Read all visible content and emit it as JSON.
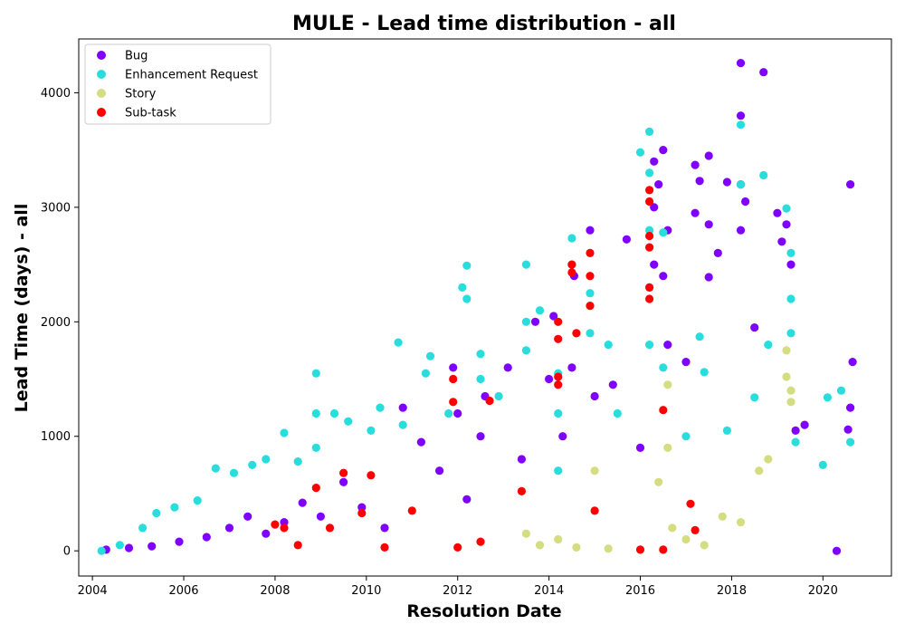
{
  "chart_data": {
    "type": "scatter",
    "title": "MULE - Lead time distribution - all",
    "xlabel": "Resolution Date",
    "ylabel": "Lead Time (days) - all",
    "x_ticks": [
      "2004",
      "2006",
      "2008",
      "2010",
      "2012",
      "2014",
      "2016",
      "2018",
      "2020"
    ],
    "y_ticks": [
      "0",
      "1000",
      "2000",
      "3000",
      "4000"
    ],
    "xlim": [
      2003.7,
      2021.5
    ],
    "ylim": [
      -220,
      4470
    ],
    "grid": false,
    "legend_position": "top-left",
    "colors": {
      "bug": "#8000ff",
      "enhancement": "#2adddd",
      "story": "#d4dd80",
      "subtask": "#ff0000"
    },
    "series": [
      {
        "name": "Bug",
        "color": "#8000ff",
        "points": [
          [
            2004.3,
            10
          ],
          [
            2004.8,
            25
          ],
          [
            2005.3,
            40
          ],
          [
            2005.9,
            80
          ],
          [
            2006.5,
            120
          ],
          [
            2007.0,
            200
          ],
          [
            2007.4,
            300
          ],
          [
            2007.8,
            150
          ],
          [
            2008.2,
            250
          ],
          [
            2008.6,
            420
          ],
          [
            2009.0,
            300
          ],
          [
            2009.5,
            600
          ],
          [
            2009.9,
            380
          ],
          [
            2010.4,
            200
          ],
          [
            2010.8,
            1250
          ],
          [
            2011.2,
            950
          ],
          [
            2011.6,
            700
          ],
          [
            2011.9,
            1600
          ],
          [
            2012.0,
            1200
          ],
          [
            2012.2,
            450
          ],
          [
            2012.5,
            1000
          ],
          [
            2012.6,
            1350
          ],
          [
            2013.1,
            1600
          ],
          [
            2013.4,
            800
          ],
          [
            2013.7,
            2000
          ],
          [
            2014.0,
            1500
          ],
          [
            2014.1,
            2050
          ],
          [
            2014.3,
            1000
          ],
          [
            2014.5,
            1600
          ],
          [
            2014.55,
            2400
          ],
          [
            2014.9,
            2800
          ],
          [
            2015.0,
            1350
          ],
          [
            2015.4,
            1450
          ],
          [
            2015.7,
            2720
          ],
          [
            2016.0,
            900
          ],
          [
            2016.3,
            3400
          ],
          [
            2016.3,
            3000
          ],
          [
            2016.3,
            2500
          ],
          [
            2016.4,
            3200
          ],
          [
            2016.5,
            3500
          ],
          [
            2016.5,
            2400
          ],
          [
            2016.6,
            1800
          ],
          [
            2016.6,
            2800
          ],
          [
            2017.0,
            1650
          ],
          [
            2017.2,
            3370
          ],
          [
            2017.2,
            2950
          ],
          [
            2017.3,
            3230
          ],
          [
            2017.5,
            3450
          ],
          [
            2017.5,
            2850
          ],
          [
            2017.5,
            2390
          ],
          [
            2017.7,
            2600
          ],
          [
            2017.9,
            3220
          ],
          [
            2018.2,
            4260
          ],
          [
            2018.2,
            3800
          ],
          [
            2018.2,
            3200
          ],
          [
            2018.2,
            2800
          ],
          [
            2018.3,
            3050
          ],
          [
            2018.5,
            1950
          ],
          [
            2018.7,
            4180
          ],
          [
            2019.0,
            2950
          ],
          [
            2019.1,
            2700
          ],
          [
            2019.2,
            2850
          ],
          [
            2019.3,
            2500
          ],
          [
            2019.4,
            1050
          ],
          [
            2019.6,
            1100
          ],
          [
            2020.3,
            0
          ],
          [
            2020.6,
            3200
          ],
          [
            2020.65,
            1650
          ],
          [
            2020.6,
            1250
          ],
          [
            2020.55,
            1060
          ]
        ]
      },
      {
        "name": "Enhancement Request",
        "color": "#2adddd",
        "points": [
          [
            2004.2,
            0
          ],
          [
            2004.6,
            50
          ],
          [
            2005.1,
            200
          ],
          [
            2005.4,
            330
          ],
          [
            2005.8,
            380
          ],
          [
            2006.3,
            440
          ],
          [
            2006.7,
            720
          ],
          [
            2007.1,
            680
          ],
          [
            2007.5,
            750
          ],
          [
            2007.8,
            800
          ],
          [
            2008.2,
            1030
          ],
          [
            2008.5,
            780
          ],
          [
            2008.9,
            1550
          ],
          [
            2008.9,
            1200
          ],
          [
            2008.9,
            900
          ],
          [
            2009.3,
            1200
          ],
          [
            2009.6,
            1130
          ],
          [
            2010.1,
            1050
          ],
          [
            2010.3,
            1250
          ],
          [
            2010.7,
            1820
          ],
          [
            2010.8,
            1100
          ],
          [
            2011.3,
            1550
          ],
          [
            2011.4,
            1700
          ],
          [
            2011.8,
            1200
          ],
          [
            2012.1,
            2300
          ],
          [
            2012.2,
            2490
          ],
          [
            2012.2,
            2200
          ],
          [
            2012.5,
            1720
          ],
          [
            2012.5,
            1500
          ],
          [
            2012.9,
            1350
          ],
          [
            2013.5,
            2500
          ],
          [
            2013.5,
            2000
          ],
          [
            2013.5,
            1750
          ],
          [
            2013.8,
            2100
          ],
          [
            2014.2,
            1550
          ],
          [
            2014.2,
            1200
          ],
          [
            2014.2,
            700
          ],
          [
            2014.5,
            2730
          ],
          [
            2014.5,
            2500
          ],
          [
            2014.9,
            2250
          ],
          [
            2014.9,
            1900
          ],
          [
            2015.3,
            1800
          ],
          [
            2015.5,
            1200
          ],
          [
            2016.0,
            3480
          ],
          [
            2016.2,
            3660
          ],
          [
            2016.2,
            3300
          ],
          [
            2016.2,
            2800
          ],
          [
            2016.2,
            2300
          ],
          [
            2016.2,
            1800
          ],
          [
            2016.5,
            2780
          ],
          [
            2016.5,
            1600
          ],
          [
            2017.0,
            1000
          ],
          [
            2017.3,
            1870
          ],
          [
            2017.4,
            1560
          ],
          [
            2017.9,
            1050
          ],
          [
            2018.2,
            3720
          ],
          [
            2018.2,
            3200
          ],
          [
            2018.5,
            1340
          ],
          [
            2018.7,
            3280
          ],
          [
            2018.8,
            1800
          ],
          [
            2019.2,
            2990
          ],
          [
            2019.3,
            2600
          ],
          [
            2019.3,
            2200
          ],
          [
            2019.3,
            1900
          ],
          [
            2019.4,
            950
          ],
          [
            2020.0,
            750
          ],
          [
            2020.1,
            1340
          ],
          [
            2020.4,
            1400
          ],
          [
            2020.6,
            950
          ]
        ]
      },
      {
        "name": "Story",
        "color": "#d4dd80",
        "points": [
          [
            2013.5,
            150
          ],
          [
            2013.8,
            50
          ],
          [
            2014.2,
            100
          ],
          [
            2014.6,
            30
          ],
          [
            2015.0,
            700
          ],
          [
            2015.3,
            20
          ],
          [
            2016.4,
            600
          ],
          [
            2016.6,
            1450
          ],
          [
            2016.6,
            900
          ],
          [
            2016.7,
            200
          ],
          [
            2017.0,
            100
          ],
          [
            2017.4,
            50
          ],
          [
            2017.8,
            300
          ],
          [
            2018.2,
            250
          ],
          [
            2018.6,
            700
          ],
          [
            2018.8,
            800
          ],
          [
            2019.2,
            1750
          ],
          [
            2019.2,
            1520
          ],
          [
            2019.3,
            1400
          ],
          [
            2019.3,
            1300
          ]
        ]
      },
      {
        "name": "Sub-task",
        "color": "#ff0000",
        "points": [
          [
            2008.0,
            230
          ],
          [
            2008.2,
            200
          ],
          [
            2008.5,
            50
          ],
          [
            2008.9,
            550
          ],
          [
            2009.2,
            200
          ],
          [
            2009.5,
            680
          ],
          [
            2009.9,
            330
          ],
          [
            2010.1,
            660
          ],
          [
            2010.4,
            30
          ],
          [
            2011.0,
            350
          ],
          [
            2011.9,
            1500
          ],
          [
            2011.9,
            1300
          ],
          [
            2012.0,
            30
          ],
          [
            2012.5,
            80
          ],
          [
            2012.7,
            1310
          ],
          [
            2013.4,
            520
          ],
          [
            2014.2,
            2000
          ],
          [
            2014.2,
            1850
          ],
          [
            2014.2,
            1520
          ],
          [
            2014.2,
            1450
          ],
          [
            2014.5,
            2500
          ],
          [
            2014.5,
            2430
          ],
          [
            2014.6,
            1900
          ],
          [
            2014.9,
            2600
          ],
          [
            2014.9,
            2400
          ],
          [
            2014.9,
            2140
          ],
          [
            2015.0,
            350
          ],
          [
            2016.0,
            10
          ],
          [
            2016.2,
            3150
          ],
          [
            2016.2,
            3050
          ],
          [
            2016.2,
            2750
          ],
          [
            2016.2,
            2650
          ],
          [
            2016.2,
            2300
          ],
          [
            2016.2,
            2200
          ],
          [
            2016.5,
            1230
          ],
          [
            2016.5,
            10
          ],
          [
            2017.1,
            410
          ],
          [
            2017.2,
            180
          ]
        ]
      }
    ],
    "legend": [
      "Bug",
      "Enhancement Request",
      "Story",
      "Sub-task"
    ]
  }
}
